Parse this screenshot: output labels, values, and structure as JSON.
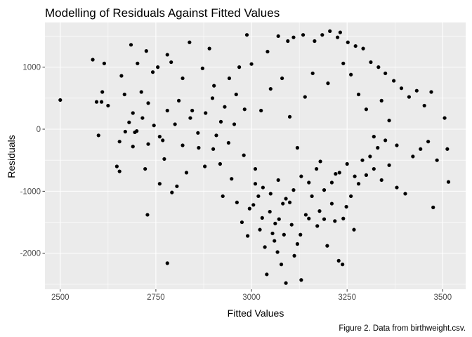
{
  "chart_data": {
    "type": "scatter",
    "title": "Modelling of Residuals Against Fitted Values",
    "xlabel": "Fitted Values",
    "ylabel": "Residuals",
    "caption": "Figure 2. Data from birthweight.csv.",
    "xlim": [
      2460,
      3560
    ],
    "ylim": [
      -2580,
      1720
    ],
    "x_ticks": [
      2500,
      2750,
      3000,
      3250,
      3500
    ],
    "y_ticks": [
      -2000,
      -1000,
      0,
      1000
    ],
    "x_tick_labels": [
      "2500",
      "2750",
      "3000",
      "3250",
      "3500"
    ],
    "y_tick_labels": [
      "-2000",
      "-1000",
      "0",
      "1000"
    ],
    "grid": true,
    "point_color": "#000000",
    "panel_background": "#ebebeb",
    "grid_major_color": "#ffffff",
    "series": [
      {
        "name": "",
        "points": [
          [
            2500,
            470
          ],
          [
            2585,
            1120
          ],
          [
            2595,
            440
          ],
          [
            2600,
            -100
          ],
          [
            2608,
            440
          ],
          [
            2615,
            1060
          ],
          [
            2610,
            600
          ],
          [
            2625,
            380
          ],
          [
            2648,
            -600
          ],
          [
            2655,
            -680
          ],
          [
            2660,
            860
          ],
          [
            2655,
            -200
          ],
          [
            2668,
            560
          ],
          [
            2680,
            110
          ],
          [
            2685,
            1360
          ],
          [
            2690,
            -280
          ],
          [
            2695,
            -50
          ],
          [
            2702,
            1060
          ],
          [
            2712,
            600
          ],
          [
            2725,
            1260
          ],
          [
            2722,
            -640
          ],
          [
            2728,
            -1380
          ],
          [
            2730,
            420
          ],
          [
            2742,
            920
          ],
          [
            2755,
            1000
          ],
          [
            2760,
            -880
          ],
          [
            2768,
            -180
          ],
          [
            2772,
            -480
          ],
          [
            2780,
            -2160
          ],
          [
            2780,
            1200
          ],
          [
            2790,
            1080
          ],
          [
            2792,
            -1020
          ],
          [
            2805,
            -920
          ],
          [
            2810,
            460
          ],
          [
            2820,
            820
          ],
          [
            2830,
            -700
          ],
          [
            2838,
            1400
          ],
          [
            2845,
            300
          ],
          [
            2862,
            -300
          ],
          [
            2872,
            980
          ],
          [
            2878,
            -600
          ],
          [
            2890,
            1300
          ],
          [
            2898,
            500
          ],
          [
            2902,
            700
          ],
          [
            2908,
            -100
          ],
          [
            2918,
            -560
          ],
          [
            2925,
            -1080
          ],
          [
            2930,
            360
          ],
          [
            2942,
            820
          ],
          [
            2948,
            -800
          ],
          [
            2955,
            80
          ],
          [
            2962,
            -1180
          ],
          [
            2968,
            1000
          ],
          [
            2975,
            -1500
          ],
          [
            2982,
            320
          ],
          [
            2988,
            1520
          ],
          [
            2990,
            -1720
          ],
          [
            2995,
            -1280
          ],
          [
            3000,
            1050
          ],
          [
            3005,
            -1220
          ],
          [
            3010,
            -880
          ],
          [
            3018,
            -1080
          ],
          [
            3022,
            -1620
          ],
          [
            3028,
            -1430
          ],
          [
            3035,
            -1900
          ],
          [
            3040,
            -2340
          ],
          [
            3042,
            1250
          ],
          [
            3048,
            -1330
          ],
          [
            3055,
            -1680
          ],
          [
            3060,
            -1800
          ],
          [
            3062,
            -1520
          ],
          [
            3068,
            -1980
          ],
          [
            3070,
            1500
          ],
          [
            3072,
            -1450
          ],
          [
            3078,
            -2180
          ],
          [
            3082,
            -1200
          ],
          [
            3085,
            -1700
          ],
          [
            3090,
            -2480
          ],
          [
            3095,
            1420
          ],
          [
            3100,
            -1180
          ],
          [
            3105,
            -1540
          ],
          [
            3110,
            1480
          ],
          [
            3112,
            -2040
          ],
          [
            3120,
            -1850
          ],
          [
            3128,
            -1700
          ],
          [
            3130,
            -2430
          ],
          [
            3135,
            1520
          ],
          [
            3142,
            -1380
          ],
          [
            3150,
            -1440
          ],
          [
            3158,
            -1080
          ],
          [
            3165,
            1420
          ],
          [
            3172,
            -1560
          ],
          [
            3178,
            -1320
          ],
          [
            3185,
            1520
          ],
          [
            3190,
            -1450
          ],
          [
            3198,
            -1880
          ],
          [
            3205,
            1580
          ],
          [
            3210,
            -1200
          ],
          [
            3218,
            -1480
          ],
          [
            3225,
            1480
          ],
          [
            3228,
            -2120
          ],
          [
            3232,
            1560
          ],
          [
            3238,
            -2180
          ],
          [
            3240,
            -1440
          ],
          [
            3248,
            -1250
          ],
          [
            3252,
            1400
          ],
          [
            3260,
            -1080
          ],
          [
            3268,
            -1620
          ],
          [
            3272,
            1340
          ],
          [
            3280,
            -880
          ],
          [
            3292,
            1300
          ],
          [
            3300,
            -740
          ],
          [
            3312,
            1080
          ],
          [
            3320,
            -640
          ],
          [
            3332,
            1000
          ],
          [
            3340,
            -820
          ],
          [
            3350,
            900
          ],
          [
            3360,
            -580
          ],
          [
            3372,
            780
          ],
          [
            3380,
            -940
          ],
          [
            3392,
            660
          ],
          [
            3402,
            -1040
          ],
          [
            3412,
            520
          ],
          [
            3422,
            -440
          ],
          [
            3432,
            620
          ],
          [
            3442,
            -320
          ],
          [
            3452,
            380
          ],
          [
            3462,
            -200
          ],
          [
            3470,
            600
          ],
          [
            3475,
            -1260
          ],
          [
            3485,
            -500
          ],
          [
            3505,
            180
          ],
          [
            3512,
            -320
          ],
          [
            3515,
            -850
          ],
          [
            3025,
            300
          ],
          [
            3050,
            650
          ],
          [
            3080,
            820
          ],
          [
            3100,
            200
          ],
          [
            3120,
            -300
          ],
          [
            3140,
            520
          ],
          [
            3160,
            900
          ],
          [
            3180,
            -520
          ],
          [
            3200,
            740
          ],
          [
            3220,
            -720
          ],
          [
            3240,
            1060
          ],
          [
            3260,
            880
          ],
          [
            3280,
            560
          ],
          [
            3300,
            320
          ],
          [
            3320,
            -120
          ],
          [
            3340,
            460
          ],
          [
            3360,
            140
          ],
          [
            3380,
            -260
          ],
          [
            2980,
            -420
          ],
          [
            2960,
            560
          ],
          [
            2940,
            -220
          ],
          [
            2920,
            120
          ],
          [
            2900,
            -320
          ],
          [
            2880,
            260
          ],
          [
            2860,
            -60
          ],
          [
            2840,
            180
          ],
          [
            2820,
            -260
          ],
          [
            2800,
            80
          ],
          [
            2780,
            300
          ],
          [
            2760,
            -120
          ],
          [
            2745,
            60
          ],
          [
            2730,
            -240
          ],
          [
            2715,
            180
          ],
          [
            2700,
            -30
          ],
          [
            2690,
            260
          ],
          [
            2670,
            -40
          ],
          [
            3010,
            -640
          ],
          [
            3030,
            -940
          ],
          [
            3050,
            -1040
          ],
          [
            3070,
            -820
          ],
          [
            3090,
            -1120
          ],
          [
            3110,
            -980
          ],
          [
            3130,
            -760
          ],
          [
            3150,
            -860
          ],
          [
            3170,
            -640
          ],
          [
            3190,
            -980
          ],
          [
            3210,
            -860
          ],
          [
            3230,
            -700
          ],
          [
            3250,
            -560
          ],
          [
            3270,
            -760
          ],
          [
            3290,
            -500
          ],
          [
            3310,
            -440
          ],
          [
            3330,
            -300
          ],
          [
            3350,
            -180
          ]
        ]
      }
    ]
  }
}
